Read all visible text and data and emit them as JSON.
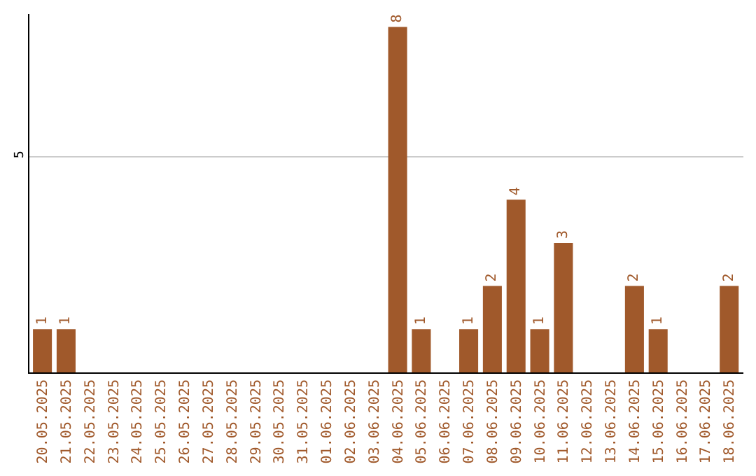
{
  "chart_data": {
    "type": "bar",
    "categories": [
      "20.05.2025",
      "21.05.2025",
      "22.05.2025",
      "23.05.2025",
      "24.05.2025",
      "25.05.2025",
      "26.05.2025",
      "27.05.2025",
      "28.05.2025",
      "29.05.2025",
      "30.05.2025",
      "31.05.2025",
      "01.06.2025",
      "02.06.2025",
      "03.06.2025",
      "04.06.2025",
      "05.06.2025",
      "06.06.2025",
      "07.06.2025",
      "08.06.2025",
      "09.06.2025",
      "10.06.2025",
      "11.06.2025",
      "12.06.2025",
      "13.06.2025",
      "14.06.2025",
      "15.06.2025",
      "16.06.2025",
      "17.06.2025",
      "18.06.2025"
    ],
    "values": [
      1,
      1,
      0,
      0,
      0,
      0,
      0,
      0,
      0,
      0,
      0,
      0,
      0,
      0,
      0,
      8,
      1,
      0,
      1,
      2,
      4,
      1,
      3,
      0,
      0,
      2,
      1,
      0,
      0,
      2
    ],
    "value_labels": [
      "1",
      "1",
      null,
      null,
      null,
      null,
      null,
      null,
      null,
      null,
      null,
      null,
      null,
      null,
      null,
      "8",
      "1",
      null,
      "1",
      "2",
      "4",
      "1",
      "3",
      null,
      null,
      "2",
      "1",
      null,
      null,
      "2"
    ],
    "color": "#a0592b",
    "ylim": [
      0,
      8.3
    ],
    "yticks": [
      5
    ],
    "grid": "y",
    "legend": false
  }
}
